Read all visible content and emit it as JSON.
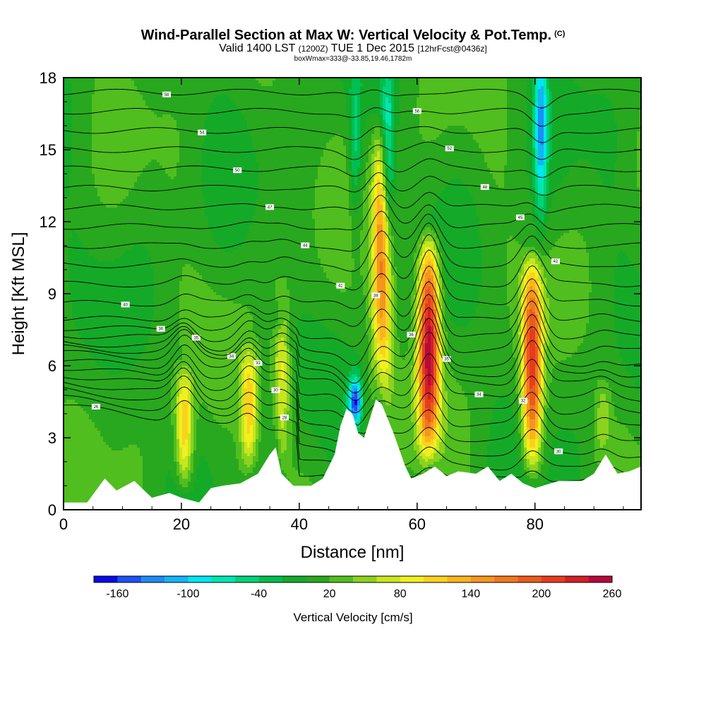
{
  "header": {
    "title": "Wind-Parallel Section at Max W: Vertical Velocity & Pot.Temp.",
    "copyright_mark": "(C)",
    "subtitle_valid": "Valid 1400 LST",
    "subtitle_utc": "(1200Z)",
    "subtitle_date": "TUE 1 Dec 2015",
    "subtitle_fcst": "[12hrFcst@0436z]",
    "subsubtitle": "boxWmax=333@-33.85,19.46,1782m"
  },
  "chart_data": {
    "type": "heatmap",
    "title": "Wind-Parallel Section at Max W: Vertical Velocity & Pot.Temp.",
    "xlabel": "Distance [nm]",
    "ylabel": "Height [Kft MSL]",
    "xlim": [
      0,
      98
    ],
    "ylim": [
      0,
      18
    ],
    "xticks": [
      "0",
      "20",
      "40",
      "60",
      "80"
    ],
    "yticks": [
      "0",
      "3",
      "6",
      "9",
      "12",
      "15",
      "18"
    ],
    "colorbar": {
      "title": "Vertical Velocity [cm/s]",
      "tick_labels": [
        "-160",
        "-100",
        "-40",
        "20",
        "80",
        "140",
        "200",
        "260"
      ],
      "levels": [
        -180,
        -160,
        -140,
        -120,
        -100,
        -80,
        -60,
        -40,
        -20,
        0,
        20,
        40,
        60,
        80,
        100,
        120,
        140,
        160,
        180,
        200,
        220,
        240,
        260
      ],
      "colors": [
        "#0a0ae6",
        "#1e50f5",
        "#1e8cf5",
        "#14b4f5",
        "#00e6f0",
        "#00e6b4",
        "#00d278",
        "#00be50",
        "#14aa28",
        "#28a81e",
        "#50be1e",
        "#8cd21e",
        "#c8e61e",
        "#f0f01e",
        "#fad21e",
        "#fab41e",
        "#f5961e",
        "#f0781e",
        "#eb5a1e",
        "#e63c1e",
        "#d21e28",
        "#b40a3c"
      ]
    },
    "terrain": [
      [
        0,
        0.3
      ],
      [
        4,
        0.3
      ],
      [
        7,
        1.3
      ],
      [
        9,
        0.8
      ],
      [
        12,
        1.2
      ],
      [
        15,
        0.5
      ],
      [
        18,
        0.7
      ],
      [
        20,
        0.5
      ],
      [
        23,
        0.3
      ],
      [
        25,
        0.9
      ],
      [
        27,
        1.0
      ],
      [
        30,
        1.1
      ],
      [
        33,
        1.5
      ],
      [
        35,
        2.3
      ],
      [
        36,
        2.6
      ],
      [
        37,
        1.5
      ],
      [
        39,
        1.0
      ],
      [
        42,
        1.0
      ],
      [
        44,
        1.3
      ],
      [
        46,
        2.3
      ],
      [
        47,
        3.5
      ],
      [
        48,
        4.2
      ],
      [
        49,
        4.0
      ],
      [
        50,
        3.2
      ],
      [
        51,
        3.0
      ],
      [
        52,
        3.8
      ],
      [
        53,
        4.6
      ],
      [
        54,
        4.4
      ],
      [
        56,
        3.2
      ],
      [
        58,
        1.8
      ],
      [
        59,
        1.3
      ],
      [
        61,
        1.5
      ],
      [
        63,
        1.8
      ],
      [
        65,
        1.4
      ],
      [
        67,
        1.6
      ],
      [
        70,
        1.5
      ],
      [
        72,
        1.8
      ],
      [
        74,
        1.2
      ],
      [
        76,
        1.5
      ],
      [
        78,
        1.1
      ],
      [
        80,
        0.9
      ],
      [
        84,
        1.2
      ],
      [
        88,
        1.2
      ],
      [
        90,
        1.5
      ],
      [
        92,
        2.3
      ],
      [
        94,
        1.5
      ],
      [
        96,
        1.6
      ],
      [
        98,
        1.8
      ]
    ],
    "updrafts": [
      {
        "x": 20.5,
        "y": 2.5,
        "w_max": 110
      },
      {
        "x": 31.5,
        "y": 3.0,
        "w_max": 100
      },
      {
        "x": 37.0,
        "y": 4.5,
        "w_max": 80
      },
      {
        "x": 54.0,
        "y": 8.0,
        "w_max": 160
      },
      {
        "x": 62.0,
        "y": 5.5,
        "w_max": 240
      },
      {
        "x": 79.5,
        "y": 5.0,
        "w_max": 200
      },
      {
        "x": 91.5,
        "y": 2.2,
        "w_max": 40
      }
    ],
    "downdrafts": [
      {
        "x": 49.5,
        "y": 4.5,
        "w_min": -160
      },
      {
        "x": 55.0,
        "y": 14.5,
        "w_min": -100
      },
      {
        "x": 81.0,
        "y": 16.0,
        "w_min": -120
      },
      {
        "x": 49.5,
        "y": 15.0,
        "w_min": -60
      },
      {
        "x": 36.5,
        "y": 8.0,
        "w_min": -40
      }
    ],
    "theta_contours": {
      "base_heights_kft": [
        1.0,
        1.6,
        2.2,
        2.8,
        3.4,
        4.0,
        4.6,
        5.2,
        5.6,
        6.0,
        6.6,
        7.2,
        7.9,
        8.6,
        9.4,
        10.2,
        11.0,
        11.8,
        12.6,
        13.4,
        14.2,
        15.0,
        15.8,
        16.6,
        17.4
      ],
      "labels": [
        "26",
        "28",
        "30",
        "30",
        "32",
        "33",
        "34",
        "34",
        "35",
        "35",
        "36",
        "36",
        "38",
        "40",
        "41",
        "42",
        "44",
        "45",
        "47",
        "48",
        "50",
        "52",
        "54",
        "56",
        "58"
      ]
    }
  }
}
